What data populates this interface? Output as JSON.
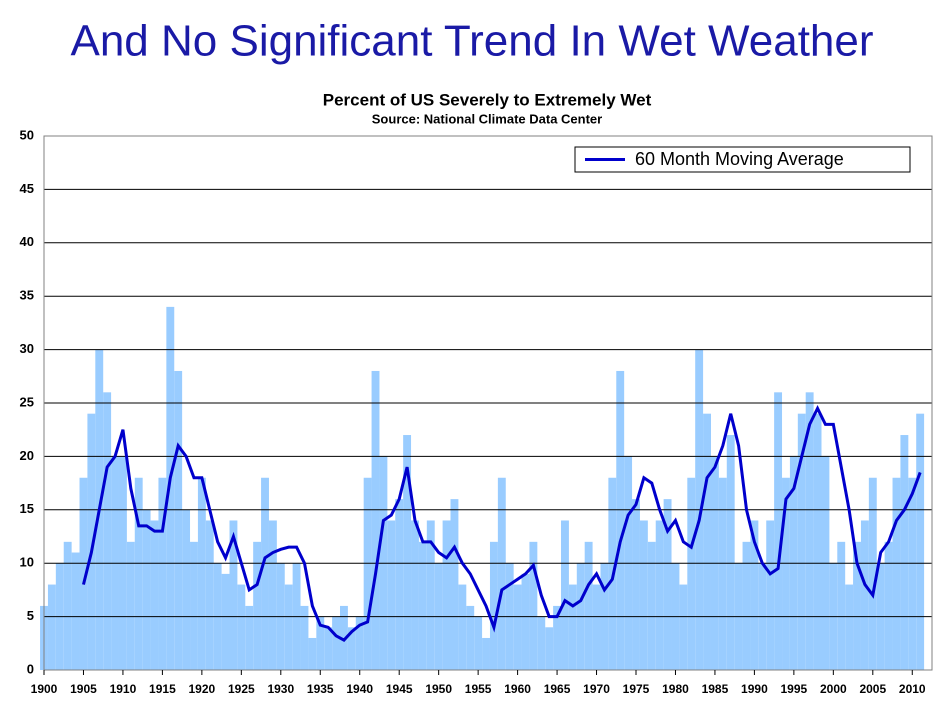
{
  "page_title": "And No Significant Trend In Wet Weather",
  "chart_data": {
    "type": "bar",
    "title": "Percent of US Severely to Extremely Wet",
    "subtitle": "Source:  National Climate Data Center",
    "xlim": [
      1900,
      2012.5
    ],
    "ylim": [
      0,
      50
    ],
    "xticks": [
      1900,
      1905,
      1910,
      1915,
      1920,
      1925,
      1930,
      1935,
      1940,
      1945,
      1950,
      1955,
      1960,
      1965,
      1970,
      1975,
      1980,
      1985,
      1990,
      1995,
      2000,
      2005,
      2010
    ],
    "yticks": [
      0,
      5,
      10,
      15,
      20,
      25,
      30,
      35,
      40,
      45,
      50
    ],
    "grid": true,
    "legend": "upper right",
    "series": [
      {
        "type": "bar",
        "color": "#99ccff",
        "x": [
          1900,
          1901,
          1902,
          1903,
          1904,
          1905,
          1906,
          1907,
          1908,
          1909,
          1910,
          1911,
          1912,
          1913,
          1914,
          1915,
          1916,
          1917,
          1918,
          1919,
          1920,
          1921,
          1922,
          1923,
          1924,
          1925,
          1926,
          1927,
          1928,
          1929,
          1930,
          1931,
          1932,
          1933,
          1934,
          1935,
          1936,
          1937,
          1938,
          1939,
          1940,
          1941,
          1942,
          1943,
          1944,
          1945,
          1946,
          1947,
          1948,
          1949,
          1950,
          1951,
          1952,
          1953,
          1954,
          1955,
          1956,
          1957,
          1958,
          1959,
          1960,
          1961,
          1962,
          1963,
          1964,
          1965,
          1966,
          1967,
          1968,
          1969,
          1970,
          1971,
          1972,
          1973,
          1974,
          1975,
          1976,
          1977,
          1978,
          1979,
          1980,
          1981,
          1982,
          1983,
          1984,
          1985,
          1986,
          1987,
          1988,
          1989,
          1990,
          1991,
          1992,
          1993,
          1994,
          1995,
          1996,
          1997,
          1998,
          1999,
          2000,
          2001,
          2002,
          2003,
          2004,
          2005,
          2006,
          2007,
          2008,
          2009,
          2010,
          2011
        ],
        "values": [
          6,
          8,
          10,
          12,
          11,
          18,
          24,
          30,
          26,
          20,
          20,
          12,
          18,
          15,
          14,
          18,
          34,
          28,
          15,
          12,
          18,
          14,
          10,
          9,
          14,
          8,
          6,
          12,
          18,
          14,
          10,
          8,
          10,
          6,
          3,
          5,
          4,
          5,
          6,
          4,
          5,
          18,
          28,
          20,
          14,
          16,
          22,
          14,
          12,
          14,
          10,
          14,
          16,
          8,
          6,
          5,
          3,
          12,
          18,
          10,
          8,
          9,
          12,
          5,
          4,
          6,
          14,
          8,
          10,
          12,
          8,
          10,
          18,
          28,
          20,
          16,
          14,
          12,
          14,
          16,
          10,
          8,
          18,
          30,
          24,
          20,
          18,
          22,
          10,
          12,
          14,
          10,
          14,
          26,
          18,
          20,
          24,
          26,
          24,
          20,
          10,
          12,
          8,
          12,
          14,
          18,
          10,
          12,
          18,
          22,
          18,
          24
        ]
      },
      {
        "type": "line",
        "name": "60 Month Moving Average",
        "color": "#0000cc",
        "x": [
          1905,
          1906,
          1907,
          1908,
          1909,
          1910,
          1911,
          1912,
          1913,
          1914,
          1915,
          1916,
          1917,
          1918,
          1919,
          1920,
          1921,
          1922,
          1923,
          1924,
          1925,
          1926,
          1927,
          1928,
          1929,
          1930,
          1931,
          1932,
          1933,
          1934,
          1935,
          1936,
          1937,
          1938,
          1939,
          1940,
          1941,
          1942,
          1943,
          1944,
          1945,
          1946,
          1947,
          1948,
          1949,
          1950,
          1951,
          1952,
          1953,
          1954,
          1955,
          1956,
          1957,
          1958,
          1959,
          1960,
          1961,
          1962,
          1963,
          1964,
          1965,
          1966,
          1967,
          1968,
          1969,
          1970,
          1971,
          1972,
          1973,
          1974,
          1975,
          1976,
          1977,
          1978,
          1979,
          1980,
          1981,
          1982,
          1983,
          1984,
          1985,
          1986,
          1987,
          1988,
          1989,
          1990,
          1991,
          1992,
          1993,
          1994,
          1995,
          1996,
          1997,
          1998,
          1999,
          2000,
          2001,
          2002,
          2003,
          2004,
          2005,
          2006,
          2007,
          2008,
          2009,
          2010,
          2011
        ],
        "values": [
          8,
          11,
          15,
          19,
          20,
          22.5,
          17,
          13.5,
          13.5,
          13,
          13,
          18,
          21,
          20,
          18,
          18,
          15,
          12,
          10.5,
          12.5,
          10,
          7.5,
          8,
          10.5,
          11,
          11.3,
          11.5,
          11.5,
          10,
          6,
          4.2,
          4,
          3.2,
          2.8,
          3.6,
          4.2,
          4.5,
          9,
          14,
          14.5,
          16,
          19,
          14,
          12,
          12,
          11,
          10.5,
          11.5,
          10,
          9,
          7.5,
          6,
          4,
          7.5,
          8,
          8.5,
          9,
          9.8,
          7,
          5,
          5,
          6.5,
          6,
          6.5,
          8,
          9,
          7.5,
          8.5,
          12,
          14.5,
          15.5,
          18,
          17.5,
          15,
          13,
          14,
          12,
          11.5,
          14,
          18,
          19,
          21,
          24,
          21,
          15,
          12,
          10,
          9,
          9.5,
          16,
          17,
          20,
          23,
          24.5,
          23,
          23,
          19,
          15,
          10,
          8,
          7,
          11,
          12,
          14,
          15,
          16.5,
          18.5
        ]
      }
    ]
  }
}
